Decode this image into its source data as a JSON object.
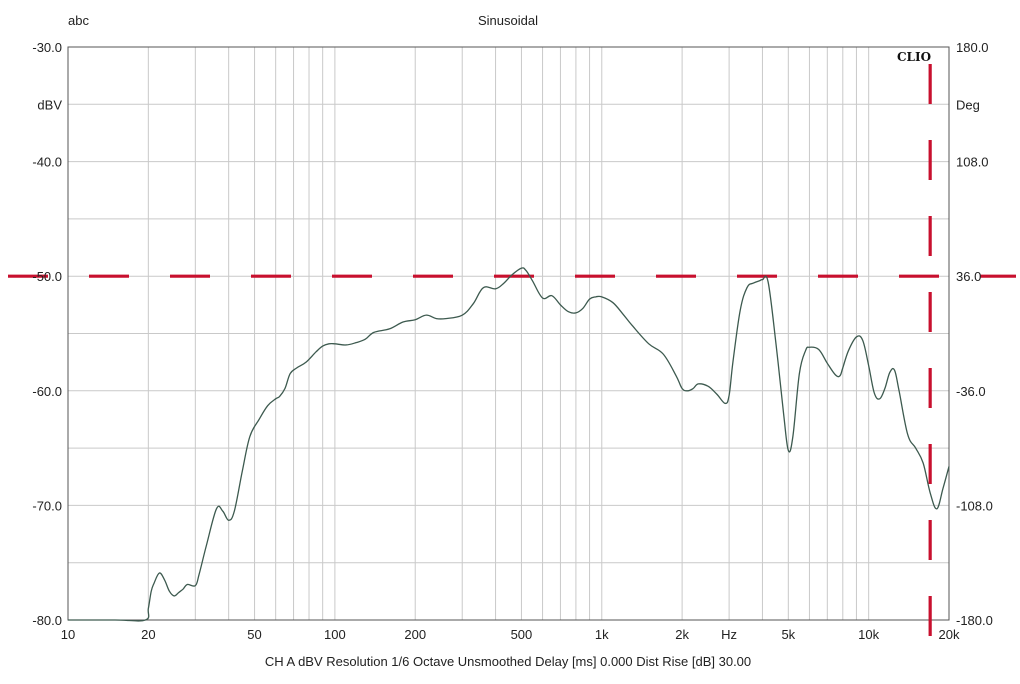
{
  "header": {
    "corner_label": "abc",
    "title": "Sinusoidal",
    "logo": "CLIO"
  },
  "footer": {
    "status": "CH A   dBV   Resolution 1/6 Octave   Unsmoothed   Delay [ms] 0.000   Dist Rise [dB] 30.00"
  },
  "chart_data": {
    "type": "line",
    "title": "Sinusoidal",
    "xscale": "log",
    "xlim": [
      10,
      20000
    ],
    "ylim": [
      -80,
      -30
    ],
    "ylim_right": [
      -180,
      180
    ],
    "xunit_label": "Hz",
    "yunit_label": "dBV",
    "yunit_label_right": "Deg",
    "grid": true,
    "x_tick_labels": [
      {
        "v": 10,
        "t": "10"
      },
      {
        "v": 20,
        "t": "20"
      },
      {
        "v": 50,
        "t": "50"
      },
      {
        "v": 100,
        "t": "100"
      },
      {
        "v": 200,
        "t": "200"
      },
      {
        "v": 500,
        "t": "500"
      },
      {
        "v": 1000,
        "t": "1k"
      },
      {
        "v": 2000,
        "t": "2k"
      },
      {
        "v": 5000,
        "t": "5k"
      },
      {
        "v": 10000,
        "t": "10k"
      },
      {
        "v": 20000,
        "t": "20k"
      }
    ],
    "y_tick_labels_left": [
      {
        "v": -30,
        "t": "-30.0"
      },
      {
        "v": -40,
        "t": "-40.0"
      },
      {
        "v": -50,
        "t": "-50.0"
      },
      {
        "v": -60,
        "t": "-60.0"
      },
      {
        "v": -70,
        "t": "-70.0"
      },
      {
        "v": -80,
        "t": "-80.0"
      }
    ],
    "y_tick_labels_right": [
      {
        "v": 180,
        "t": "180.0"
      },
      {
        "v": 108,
        "t": "108.0"
      },
      {
        "v": 36,
        "t": "36.0"
      },
      {
        "v": -36,
        "t": "-36.0"
      },
      {
        "v": -108,
        "t": "-108.0"
      },
      {
        "v": -180,
        "t": "-180.0"
      }
    ],
    "markers": {
      "horizontal_level_dbv": -50,
      "vertical_frequency_hz": 17000,
      "color": "#c8102e",
      "style": "dashed"
    },
    "series": [
      {
        "color": "#3d5a4f",
        "x": [
          10,
          15,
          19.5,
          20,
          20.5,
          21,
          22,
          23,
          24,
          25,
          26,
          27,
          28,
          30,
          31,
          33,
          36,
          38,
          40,
          42,
          45,
          48,
          52,
          56,
          60,
          62,
          65,
          68,
          72,
          78,
          85,
          90,
          95,
          100,
          110,
          120,
          130,
          140,
          160,
          180,
          200,
          220,
          240,
          260,
          300,
          330,
          360,
          400,
          430,
          460,
          500,
          520,
          550,
          600,
          650,
          700,
          750,
          800,
          850,
          900,
          950,
          1000,
          1100,
          1200,
          1300,
          1500,
          1700,
          1900,
          2000,
          2100,
          2200,
          2300,
          2500,
          2700,
          2900,
          3000,
          3100,
          3300,
          3500,
          3700,
          3900,
          4000,
          4200,
          4500,
          4800,
          5000,
          5200,
          5500,
          5800,
          6000,
          6500,
          7000,
          7500,
          7800,
          8000,
          8400,
          9000,
          9500,
          10000,
          10500,
          11000,
          11500,
          12000,
          12500,
          13000,
          14000,
          15000,
          16000,
          17000,
          18000,
          19000,
          20000
        ],
        "y": [
          -80,
          -80,
          -80,
          -79,
          -77.5,
          -76.8,
          -75.9,
          -76.5,
          -77.5,
          -77.9,
          -77.6,
          -77.3,
          -76.9,
          -77,
          -76,
          -73.5,
          -70.3,
          -70.5,
          -71.3,
          -70.5,
          -67,
          -64,
          -62.5,
          -61.3,
          -60.7,
          -60.5,
          -59.8,
          -58.5,
          -58,
          -57.5,
          -56.6,
          -56.1,
          -55.9,
          -55.9,
          -56,
          -55.8,
          -55.5,
          -54.9,
          -54.6,
          -54,
          -53.8,
          -53.4,
          -53.7,
          -53.7,
          -53.4,
          -52.4,
          -51,
          -51.1,
          -50.6,
          -49.9,
          -49.3,
          -49.5,
          -50.4,
          -51.9,
          -51.7,
          -52.5,
          -53.1,
          -53.2,
          -52.8,
          -52.0,
          -51.8,
          -51.8,
          -52.3,
          -53.3,
          -54.3,
          -55.9,
          -56.8,
          -58.7,
          -59.8,
          -60.0,
          -59.8,
          -59.4,
          -59.6,
          -60.3,
          -61.1,
          -60.4,
          -57.5,
          -53,
          -51,
          -50.6,
          -50.4,
          -50.3,
          -50.5,
          -56,
          -62,
          -65.2,
          -64,
          -58.5,
          -56.5,
          -56.2,
          -56.4,
          -57.6,
          -58.6,
          -58.7,
          -58.0,
          -56.5,
          -55.3,
          -55.6,
          -57.8,
          -60.2,
          -60.7,
          -59.8,
          -58.4,
          -58.2,
          -60.0,
          -63.8,
          -65,
          -66.3,
          -68.9,
          -70.3,
          -68.5,
          -66.6
        ]
      }
    ]
  }
}
